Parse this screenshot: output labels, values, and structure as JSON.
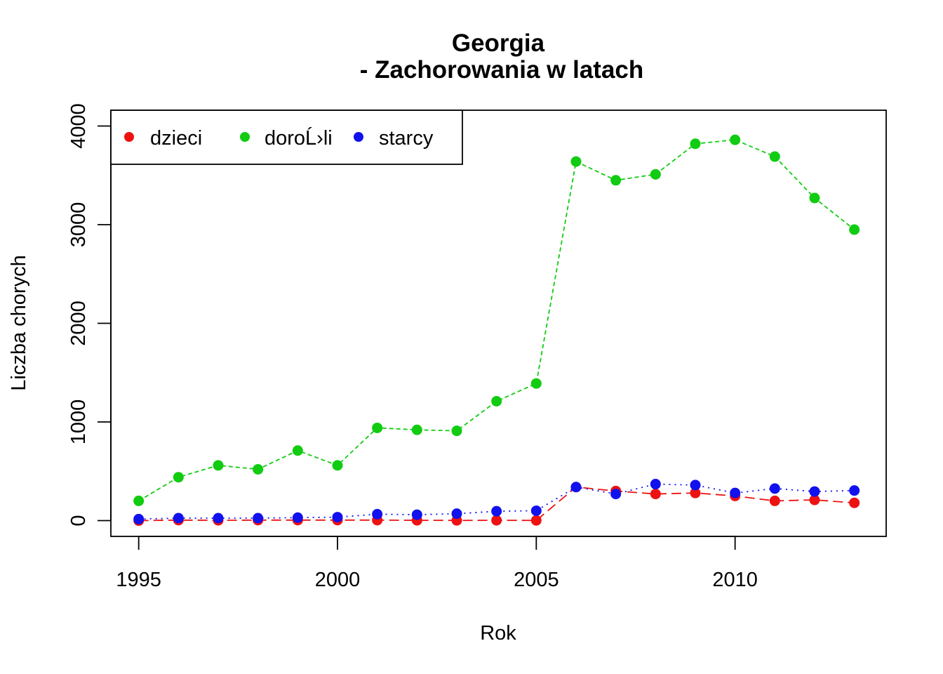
{
  "chart_data": {
    "type": "line",
    "title": "Georgia",
    "subtitle": "- Zachorowania w latach",
    "xlabel": "Rok",
    "ylabel": "Liczba chorych",
    "xlim": [
      1994.3,
      2013.8
    ],
    "ylim": [
      -160,
      4160
    ],
    "x_ticks": [
      "1995",
      "2000",
      "2005",
      "2010"
    ],
    "y_ticks": [
      "0",
      "1000",
      "2000",
      "3000",
      "4000"
    ],
    "grid": false,
    "legend_position": "top-left",
    "x": [
      1995,
      1996,
      1997,
      1998,
      1999,
      2000,
      2001,
      2002,
      2003,
      2004,
      2005,
      2006,
      2007,
      2008,
      2009,
      2010,
      2011,
      2012,
      2013
    ],
    "series": [
      {
        "name": "dzieci",
        "color": "#ee1111",
        "dash": "long-dash",
        "values": [
          0,
          5,
          3,
          5,
          5,
          5,
          5,
          3,
          2,
          3,
          2,
          340,
          300,
          270,
          280,
          250,
          200,
          210,
          180
        ]
      },
      {
        "name": "doroĹ›li",
        "color": "#11cc11",
        "dash": "short-dash",
        "values": [
          200,
          440,
          560,
          520,
          710,
          560,
          940,
          920,
          910,
          1210,
          1390,
          3640,
          3450,
          3510,
          3820,
          3860,
          3690,
          3270,
          2950
        ]
      },
      {
        "name": "starcy",
        "color": "#1111ee",
        "dash": "dotted",
        "values": [
          15,
          25,
          25,
          25,
          30,
          35,
          65,
          60,
          70,
          95,
          100,
          340,
          270,
          370,
          360,
          280,
          325,
          295,
          305
        ]
      }
    ]
  }
}
